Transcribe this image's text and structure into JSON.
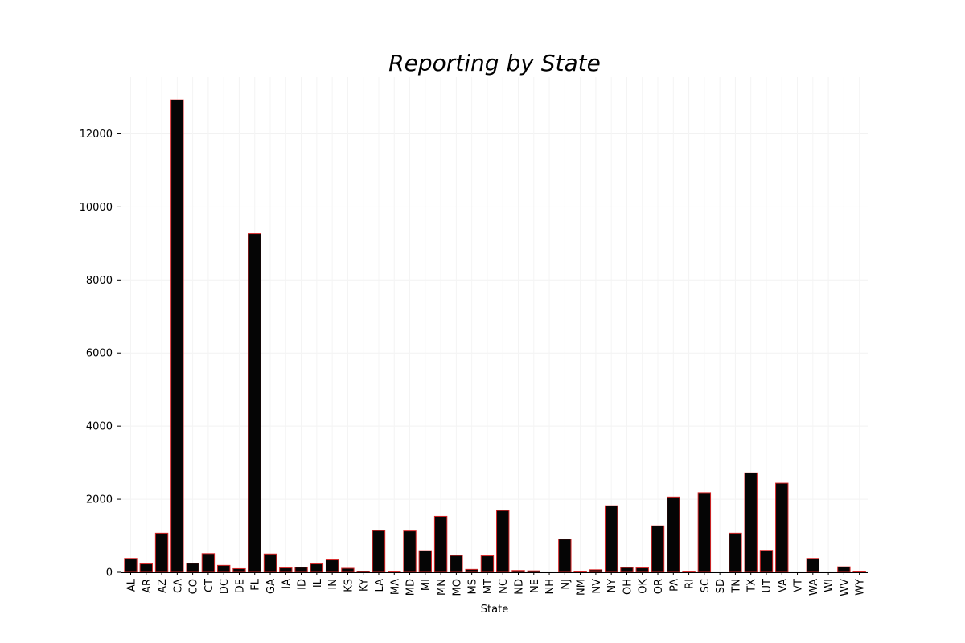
{
  "chart_data": {
    "type": "bar",
    "title": "Reporting by State",
    "xlabel": "State",
    "ylabel": "",
    "ylim": [
      0,
      13550
    ],
    "yticks": [
      0,
      2000,
      4000,
      6000,
      8000,
      10000,
      12000
    ],
    "grid": true,
    "bar_color": "#050505",
    "bar_edge_color": "#d62728",
    "categories": [
      "AL",
      "AR",
      "AZ",
      "CA",
      "CO",
      "CT",
      "DC",
      "DE",
      "FL",
      "GA",
      "IA",
      "ID",
      "IL",
      "IN",
      "KS",
      "KY",
      "LA",
      "MA",
      "MD",
      "MI",
      "MN",
      "MO",
      "MS",
      "MT",
      "NC",
      "ND",
      "NE",
      "NH",
      "NJ",
      "NM",
      "NV",
      "NY",
      "OH",
      "OK",
      "OR",
      "PA",
      "RI",
      "SC",
      "SD",
      "TN",
      "TX",
      "UT",
      "VA",
      "VT",
      "WA",
      "WI",
      "WV",
      "WY"
    ],
    "values": [
      380,
      230,
      1070,
      12930,
      250,
      510,
      190,
      100,
      9270,
      500,
      120,
      140,
      230,
      340,
      110,
      30,
      1140,
      10,
      1130,
      590,
      1530,
      460,
      80,
      450,
      1690,
      50,
      40,
      0,
      910,
      20,
      70,
      1820,
      130,
      120,
      1270,
      2060,
      10,
      2180,
      0,
      1070,
      2720,
      600,
      2440,
      0,
      380,
      0,
      150,
      20
    ]
  }
}
